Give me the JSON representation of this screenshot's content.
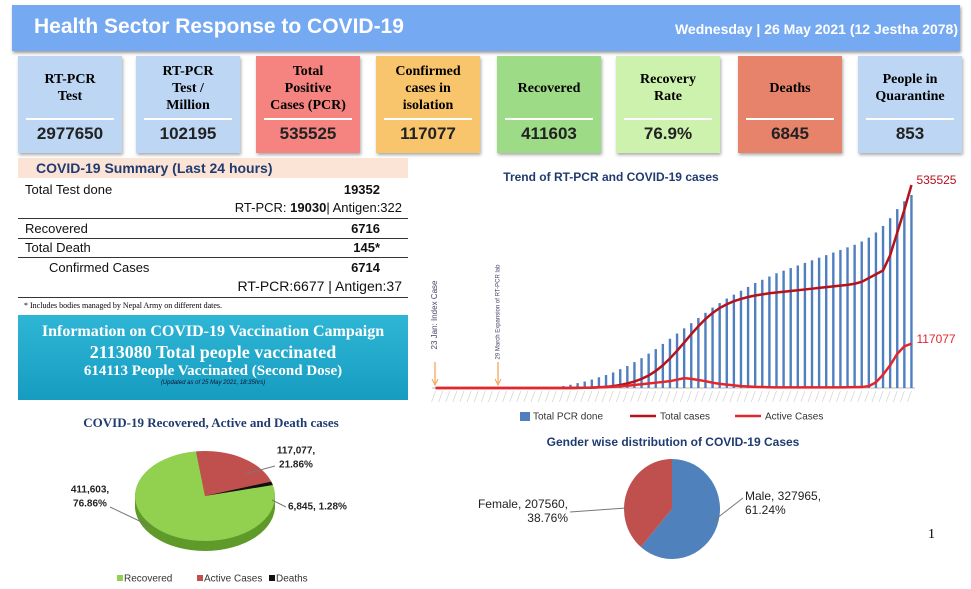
{
  "header": {
    "title": "Health Sector Response to COVID-19",
    "date": "Wednesday | 26 May 2021 (12 Jestha 2078)"
  },
  "cards": [
    {
      "label": [
        "RT-PCR",
        "Test"
      ],
      "value": "2977650",
      "color": "#bcd6f4"
    },
    {
      "label": [
        "RT-PCR",
        "Test /",
        "Million"
      ],
      "value": "102195",
      "color": "#bcd6f4"
    },
    {
      "label": [
        "Total",
        "Positive",
        "Cases (PCR)"
      ],
      "value": "535525",
      "color": "#f5837f"
    },
    {
      "label": [
        "Confirmed",
        "cases in",
        "isolation"
      ],
      "value": "117077",
      "color": "#f8c46c"
    },
    {
      "label": [
        "Recovered"
      ],
      "value": "411603",
      "color": "#9edb87"
    },
    {
      "label": [
        "Recovery",
        "Rate"
      ],
      "value": "76.9%",
      "color": "#cdf2ad"
    },
    {
      "label": [
        "Deaths"
      ],
      "value": "6845",
      "color": "#e8836b"
    },
    {
      "label": [
        "People in",
        "Quarantine"
      ],
      "value": "853",
      "color": "#bcd6f4"
    }
  ],
  "summary": {
    "title": "COVID-19 Summary (Last 24 hours)",
    "total_test": {
      "label": "Total Test done",
      "value": "19352"
    },
    "test_split": {
      "pcr_label": "RT-PCR:",
      "pcr_value": "19030",
      "antigen": "| Antigen:322"
    },
    "recovered": {
      "label": "Recovered",
      "value": "6716"
    },
    "deaths": {
      "label": "Total Death",
      "value": "145*"
    },
    "confirmed": {
      "label": "Confirmed Cases",
      "value": "6714"
    },
    "confirmed_split": "RT-PCR:6677 | Antigen:37",
    "footnote": "* Includes bodies managed by Nepal Army on different dates."
  },
  "vaccination": {
    "title": "Information on COVID-19 Vaccination Campaign",
    "line1": "2113080 Total people vaccinated",
    "line2": "614113 People Vaccinated (Second Dose)",
    "note": "(Updated as of 25 May 2021, 18:35hrs)"
  },
  "page_number": "1",
  "chart_data": [
    {
      "type": "bar-line",
      "title": "Trend of RT-PCR and COVID-19 cases",
      "annotations": [
        "23 Jan: Index Case",
        "29 March Expansion of RT-PCR lab"
      ],
      "categories": [
        null,
        null,
        null,
        null,
        null,
        null,
        null,
        null,
        null,
        null,
        null,
        null,
        null,
        null,
        null,
        null,
        null,
        null,
        null,
        null,
        null,
        null,
        null,
        null,
        null,
        null,
        null,
        null,
        null,
        null,
        null,
        null,
        null,
        null,
        null,
        null,
        null,
        null,
        null,
        null,
        null,
        null,
        null,
        null,
        null,
        null,
        null,
        null,
        null,
        null,
        null,
        null,
        null,
        null,
        null,
        null,
        null,
        null,
        null,
        null,
        null,
        null,
        null,
        null,
        null,
        null,
        null,
        null
      ],
      "series": [
        {
          "name": "Total PCR done",
          "kind": "bar",
          "color": "#4f7fbf",
          "values": [
            0,
            0,
            0,
            0,
            0,
            0,
            0,
            0,
            0,
            0,
            0,
            0,
            0,
            0,
            0,
            0,
            5000,
            15000,
            30000,
            50000,
            75000,
            100000,
            130000,
            165000,
            200000,
            240000,
            290000,
            340000,
            400000,
            460000,
            530000,
            600000,
            680000,
            760000,
            840000,
            920000,
            1000000,
            1080000,
            1160000,
            1240000,
            1310000,
            1380000,
            1440000,
            1500000,
            1560000,
            1620000,
            1670000,
            1720000,
            1770000,
            1810000,
            1850000,
            1890000,
            1930000,
            1970000,
            2010000,
            2050000,
            2090000,
            2130000,
            2170000,
            2210000,
            2260000,
            2320000,
            2400000,
            2500000,
            2620000,
            2760000,
            2880000,
            2977650
          ]
        },
        {
          "name": "Total  cases",
          "kind": "line",
          "color": "#b5121b",
          "values": [
            0,
            0,
            0,
            0,
            0,
            0,
            0,
            0,
            0,
            0,
            0,
            0,
            0,
            0,
            0,
            0,
            0,
            0,
            0,
            100,
            300,
            600,
            1000,
            2000,
            3000,
            5000,
            8000,
            12000,
            17000,
            24000,
            33000,
            45000,
            60000,
            78000,
            98000,
            120000,
            142000,
            163000,
            182000,
            198000,
            211000,
            221000,
            229000,
            235000,
            240000,
            244000,
            247000,
            250000,
            252000,
            254000,
            256000,
            258000,
            260000,
            262000,
            264000,
            266000,
            268000,
            270000,
            272000,
            275000,
            280000,
            290000,
            300000,
            310000,
            350000,
            410000,
            470000,
            535525
          ]
        },
        {
          "name": "Active Cases",
          "kind": "line",
          "color": "#e3262c",
          "values": [
            0,
            0,
            0,
            0,
            0,
            0,
            0,
            0,
            0,
            0,
            0,
            0,
            0,
            0,
            0,
            0,
            0,
            0,
            0,
            100,
            300,
            500,
            900,
            1500,
            2200,
            3200,
            4500,
            6000,
            8000,
            10000,
            12000,
            14000,
            16000,
            18000,
            22000,
            26000,
            24000,
            21000,
            18000,
            14000,
            11000,
            9000,
            7000,
            5000,
            4000,
            3000,
            2500,
            2000,
            1800,
            1700,
            1600,
            1500,
            1500,
            1600,
            1800,
            1700,
            1700,
            1800,
            2000,
            2200,
            2500,
            5000,
            15000,
            35000,
            60000,
            90000,
            110000,
            117077
          ]
        }
      ]
    },
    {
      "type": "pie",
      "title": "COVID-19 Recovered, Active and Death cases",
      "categories": [
        "Recovered",
        "Active Cases",
        "Deaths"
      ],
      "values": [
        411603,
        117077,
        6845
      ],
      "value_labels": [
        [
          "411,603,",
          "76.86%"
        ],
        [
          "117,077,",
          "21.86%"
        ],
        [
          "6,845, 1.28%"
        ]
      ],
      "colors": [
        "#92d050",
        "#c0504d",
        "#111111"
      ],
      "depth_colors": [
        "#5f9a2b",
        "#8a302d",
        "#000000"
      ]
    },
    {
      "type": "pie",
      "title": "Gender wise distribution of COVID-19 Cases",
      "categories": [
        "Male",
        "Female"
      ],
      "values": [
        327965,
        207560
      ],
      "value_labels": [
        [
          "Male, 327965,",
          "61.24%"
        ],
        [
          "Female, 207560,",
          "38.76%"
        ]
      ],
      "colors": [
        "#4f81bd",
        "#c0504d"
      ]
    }
  ]
}
